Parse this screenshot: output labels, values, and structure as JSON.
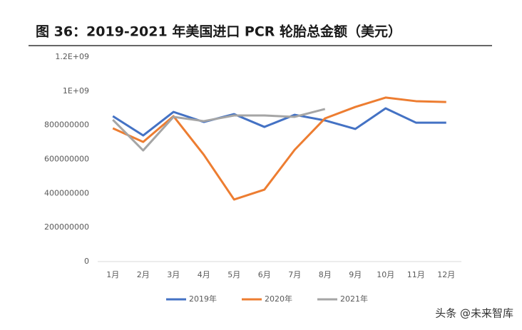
{
  "chart_data": {
    "type": "line",
    "title": "图 36：2019-2021 年美国进口 PCR 轮胎总金额（美元）",
    "categories": [
      "1月",
      "2月",
      "3月",
      "4月",
      "5月",
      "6月",
      "7月",
      "8月",
      "9月",
      "10月",
      "11月",
      "12月"
    ],
    "series": [
      {
        "name": "2019年",
        "color": "#4472c4",
        "values": [
          853000000,
          740000000,
          878000000,
          819000000,
          865000000,
          790000000,
          861000000,
          828000000,
          778000000,
          899000000,
          815000000,
          815000000
        ]
      },
      {
        "name": "2020年",
        "color": "#ed7d31",
        "values": [
          782000000,
          702000000,
          853000000,
          627000000,
          364000000,
          422000000,
          656000000,
          840000000,
          907000000,
          962000000,
          941000000,
          936000000
        ]
      },
      {
        "name": "2021年",
        "color": "#a5a5a5",
        "values": [
          832000000,
          652000000,
          849000000,
          824000000,
          857000000,
          857000000,
          849000000,
          895000000,
          null,
          null,
          null,
          null
        ]
      }
    ],
    "ylim": [
      0,
      1200000000
    ],
    "yticks": [
      0,
      200000000,
      400000000,
      600000000,
      800000000,
      {
        "value": 1000000000,
        "label": "1E+09"
      },
      {
        "value": 1200000000,
        "label": "1.2E+09"
      }
    ],
    "grid": false,
    "legend": "bottom",
    "watermark": "头条 @未来智库"
  }
}
